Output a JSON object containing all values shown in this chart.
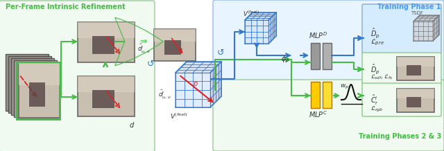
{
  "title_left": "Per-Frame Intrinsic Refinement",
  "title_right": "Training Phase 1",
  "title_right2": "Training Phases 2 & 3",
  "title_left_color": "#44bb44",
  "title_right_color": "#4499ff",
  "title_right2_color": "#44bb44",
  "bg_left_color": "#f0faf0",
  "bg_right_top_color": "#e8f4ff",
  "bg_right_bot_color": "#f0faf0",
  "cube_color": "#5599dd",
  "cube_color2": "#888888",
  "gray_mlp": "#aaaaaa",
  "yellow_mlp": "#ffcc00",
  "fig_width": 6.4,
  "fig_height": 2.18,
  "green": "#44bb44",
  "blue": "#3377cc",
  "red": "#dd2222"
}
